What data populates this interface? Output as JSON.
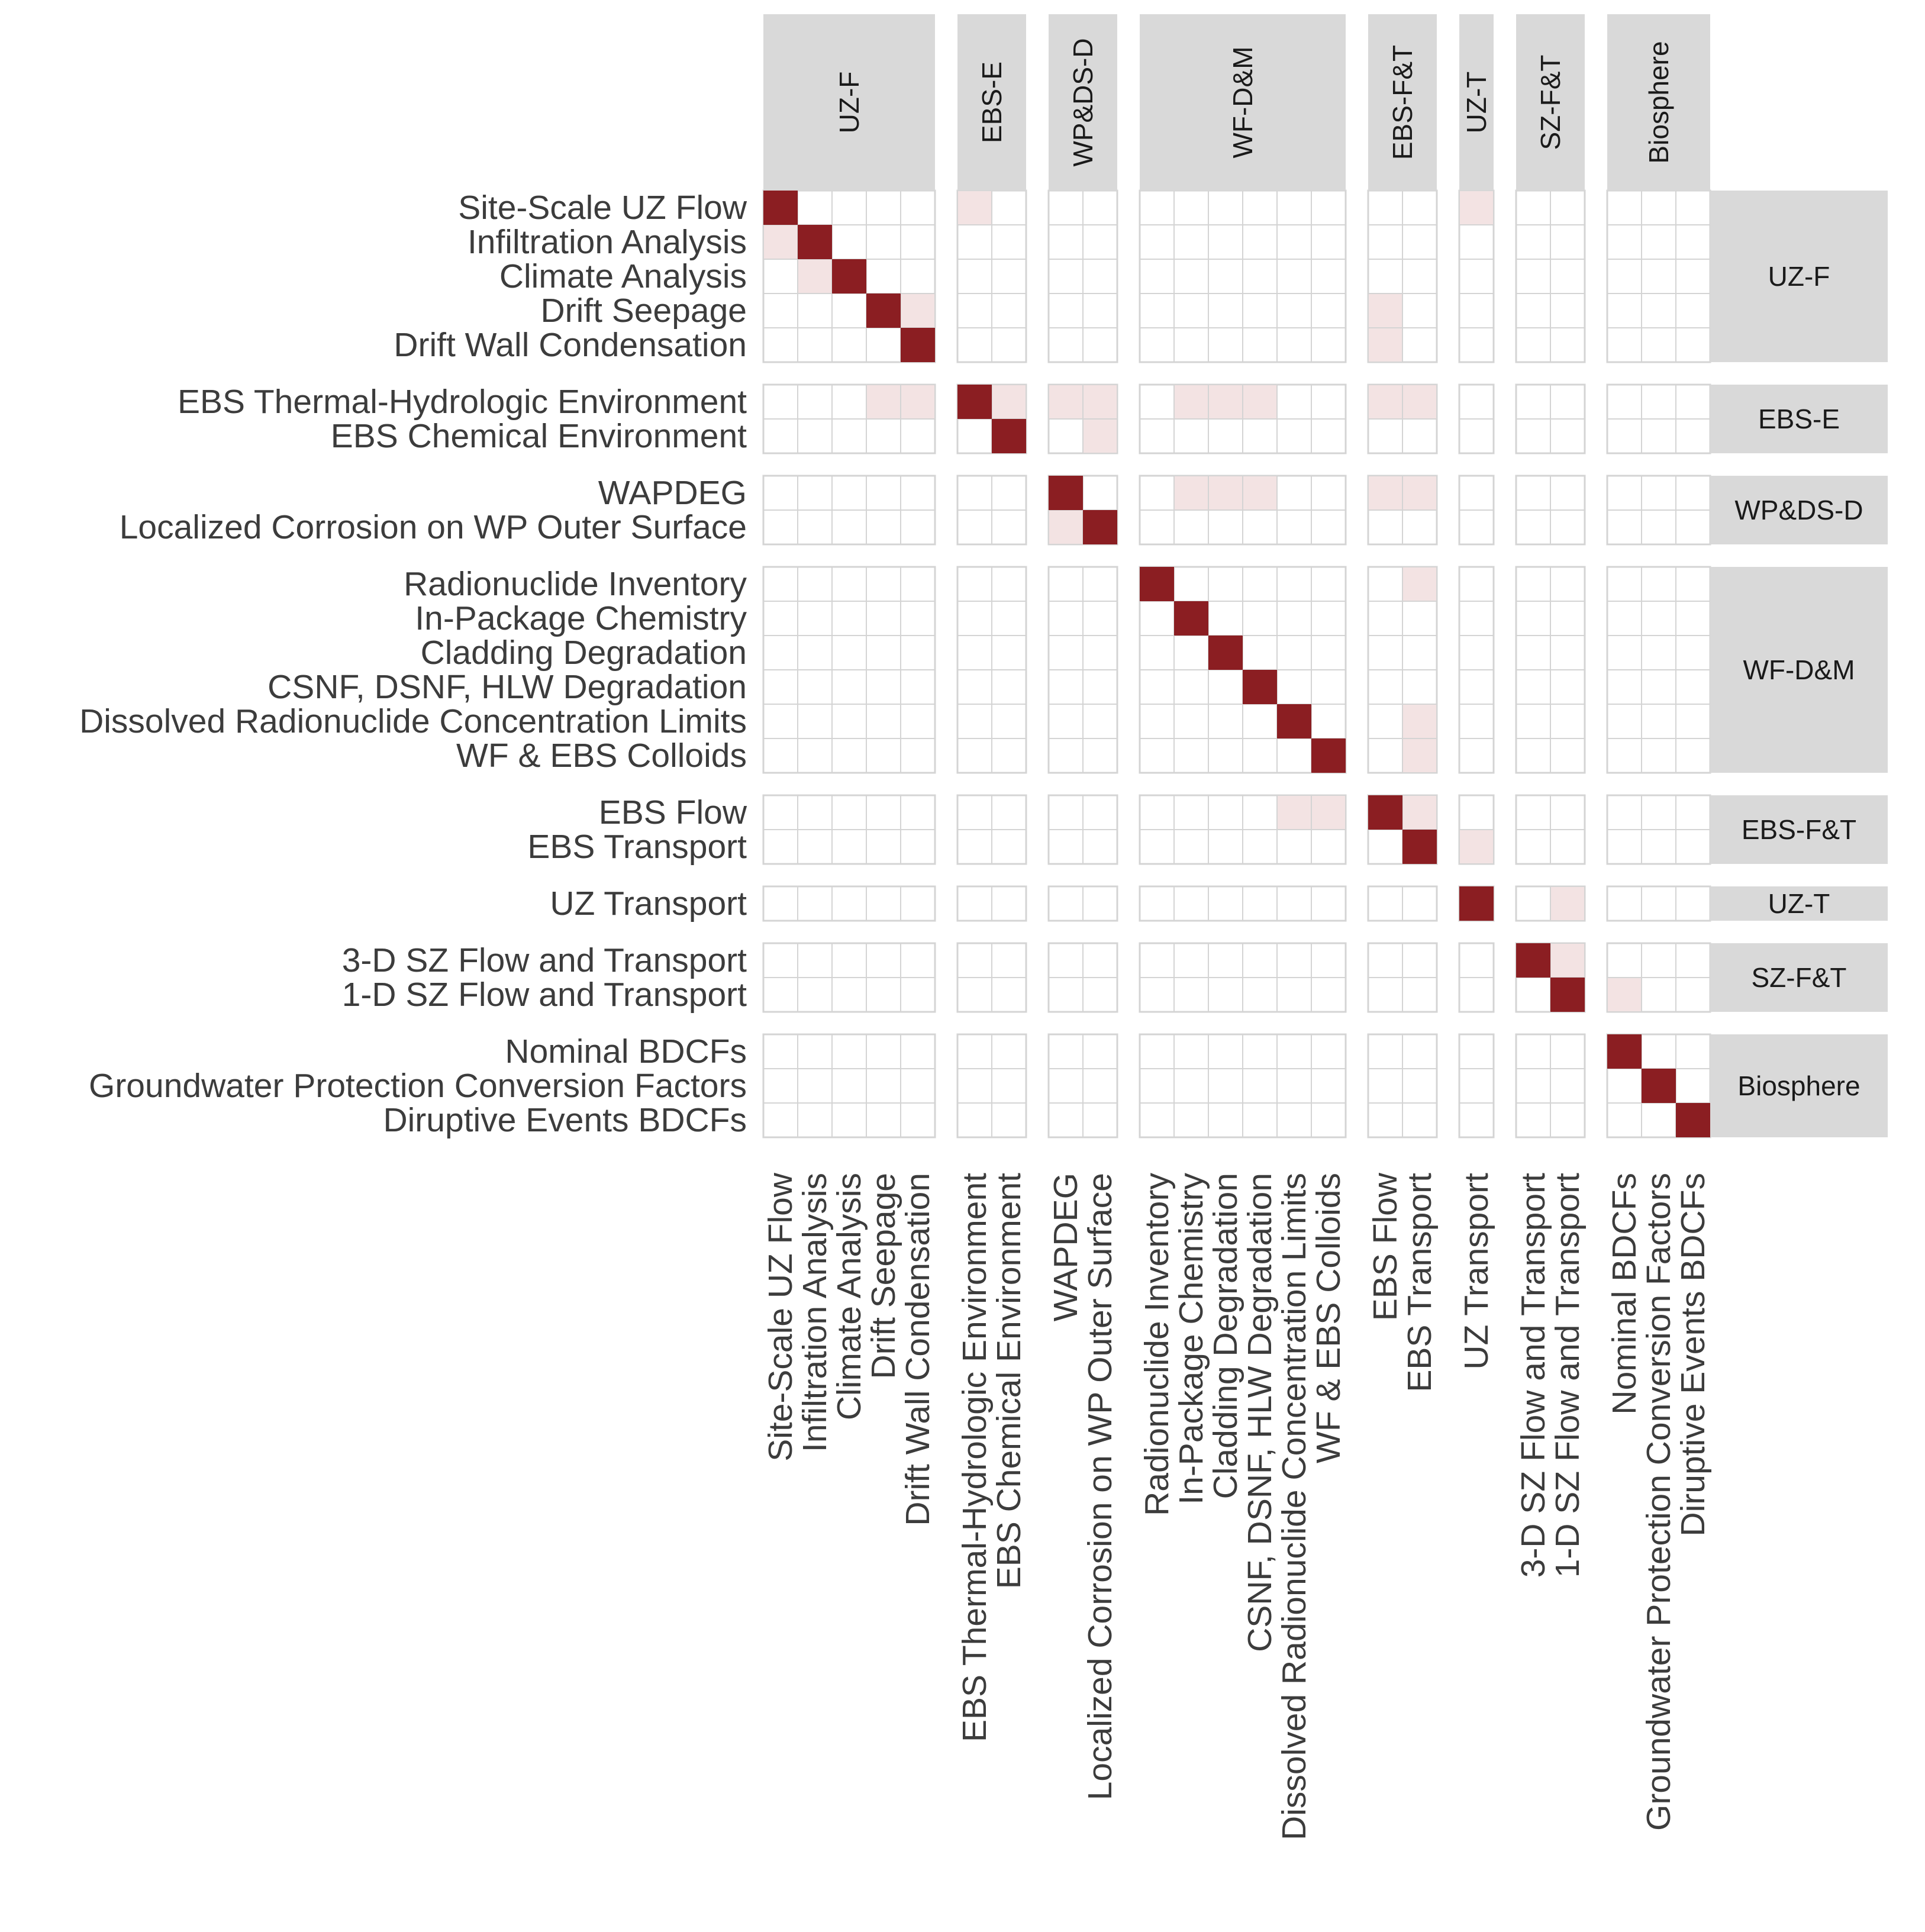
{
  "chart_data": {
    "type": "heatmap",
    "colors": {
      "diagonal": "#8b1e22",
      "offdiagonal": "#f3e3e3",
      "strip": "#d9d9d9",
      "grid": "#d4d4d4",
      "empty": "#ffffff"
    },
    "groups": [
      {
        "name": "UZ-F",
        "items": [
          "Site-Scale UZ Flow",
          "Infiltration Analysis",
          "Climate Analysis",
          "Drift Seepage",
          "Drift Wall Condensation"
        ]
      },
      {
        "name": "EBS-E",
        "items": [
          "EBS Thermal-Hydrologic Environment",
          "EBS Chemical Environment"
        ]
      },
      {
        "name": "WP&DS-D",
        "items": [
          "WAPDEG",
          "Localized Corrosion on WP Outer Surface"
        ]
      },
      {
        "name": "WF-D&M",
        "items": [
          "Radionuclide Inventory",
          "In-Package Chemistry",
          "Cladding Degradation",
          "CSNF, DSNF, HLW Degradation",
          "Dissolved Radionuclide Concentration Limits",
          "WF & EBS Colloids"
        ]
      },
      {
        "name": "EBS-F&T",
        "items": [
          "EBS Flow",
          "EBS Transport"
        ]
      },
      {
        "name": "UZ-T",
        "items": [
          "UZ Transport"
        ]
      },
      {
        "name": "SZ-F&T",
        "items": [
          "3-D SZ Flow and Transport",
          "1-D SZ Flow and Transport"
        ]
      },
      {
        "name": "Biosphere",
        "items": [
          "Nominal BDCFs",
          "Groundwater Protection Conversion Factors",
          "Diruptive Events BDCFs"
        ]
      }
    ],
    "col_labels": [
      "Site-Scale UZ Flow",
      "Infiltration Analysis",
      "Climate Analysis",
      "Drift Seepage",
      "Drift Wall Condensation",
      "EBS Thermal-Hydrologic Environment",
      "EBS Chemical Environment",
      "WAPDEG",
      "Localized Corrosion on WP Outer Surface",
      "Radionuclide Inventory",
      "In-Package Chemistry",
      "Cladding Degradation",
      "CSNF, DSNF, HLW Degradation",
      "Dissolved Radionuclide Concentration Limits",
      "WF & EBS Colloids",
      "EBS Flow",
      "EBS Transport",
      "UZ Transport",
      "3-D SZ Flow and Transport",
      "1-D SZ Flow and Transport",
      "Nominal BDCFs",
      "Groundwater Protection Conversion Factors",
      "Diruptive Events BDCFs"
    ],
    "row_labels": [
      "Site-Scale UZ Flow",
      "Infiltration Analysis",
      "Climate Analysis",
      "Drift Seepage",
      "Drift Wall Condensation",
      "EBS Thermal-Hydrologic Environment",
      "EBS Chemical Environment",
      "WAPDEG",
      "Localized Corrosion on WP Outer Surface",
      "Radionuclide Inventory",
      "In-Package Chemistry",
      "Cladding Degradation",
      "CSNF, DSNF, HLW Degradation",
      "Dissolved Radionuclide Concentration Limits",
      "WF & EBS Colloids",
      "EBS Flow",
      "EBS Transport",
      "UZ Transport",
      "3-D SZ Flow and Transport",
      "1-D SZ Flow and Transport",
      "Nominal BDCFs",
      "Groundwater Protection Conversion Factors",
      "Diruptive Events BDCFs"
    ],
    "diagonal_cells": [
      [
        0,
        0
      ],
      [
        1,
        1
      ],
      [
        2,
        2
      ],
      [
        3,
        3
      ],
      [
        4,
        4
      ],
      [
        5,
        5
      ],
      [
        6,
        6
      ],
      [
        7,
        7
      ],
      [
        8,
        8
      ],
      [
        9,
        9
      ],
      [
        10,
        10
      ],
      [
        11,
        11
      ],
      [
        12,
        12
      ],
      [
        13,
        13
      ],
      [
        14,
        14
      ],
      [
        15,
        15
      ],
      [
        16,
        16
      ],
      [
        17,
        17
      ],
      [
        18,
        18
      ],
      [
        19,
        19
      ],
      [
        20,
        20
      ],
      [
        21,
        21
      ],
      [
        22,
        22
      ]
    ],
    "link_cells": [
      [
        0,
        5
      ],
      [
        0,
        17
      ],
      [
        1,
        0
      ],
      [
        2,
        1
      ],
      [
        3,
        4
      ],
      [
        3,
        15
      ],
      [
        4,
        15
      ],
      [
        5,
        3
      ],
      [
        5,
        4
      ],
      [
        5,
        6
      ],
      [
        5,
        7
      ],
      [
        5,
        8
      ],
      [
        5,
        10
      ],
      [
        5,
        11
      ],
      [
        5,
        12
      ],
      [
        5,
        15
      ],
      [
        5,
        16
      ],
      [
        6,
        8
      ],
      [
        7,
        10
      ],
      [
        7,
        11
      ],
      [
        7,
        12
      ],
      [
        7,
        15
      ],
      [
        7,
        16
      ],
      [
        8,
        7
      ],
      [
        9,
        16
      ],
      [
        13,
        16
      ],
      [
        14,
        16
      ],
      [
        15,
        13
      ],
      [
        15,
        14
      ],
      [
        15,
        16
      ],
      [
        16,
        17
      ],
      [
        17,
        19
      ],
      [
        18,
        19
      ],
      [
        19,
        20
      ]
    ]
  }
}
